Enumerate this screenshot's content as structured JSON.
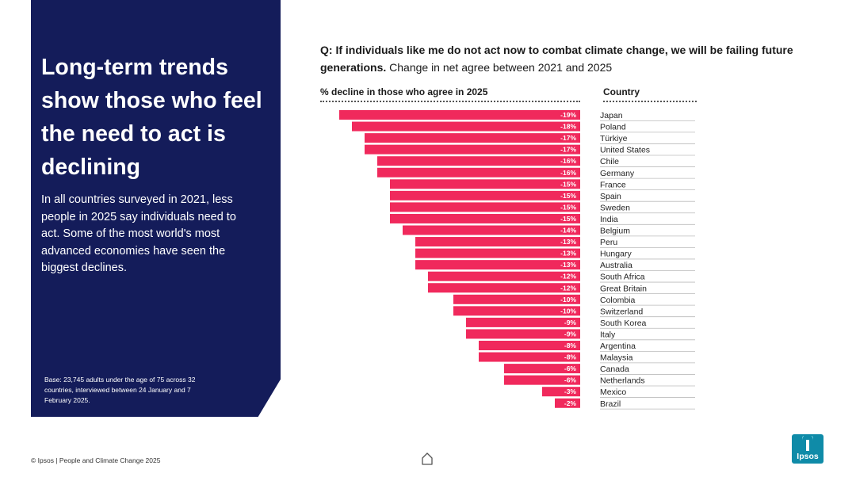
{
  "left_panel": {
    "headline": "Long-term trends show those who feel the need to act is declining",
    "intro": "In all countries surveyed in 2021, less people in 2025 say individuals need to act. Some of the most world's most advanced economies have seen the biggest declines.",
    "base_note": "Base: 23,745 adults under the age of 75 across 32 countries, interviewed between 24 January and 7 February 2025."
  },
  "question": {
    "bold": "Q: If individuals like me do not act now to combat climate change, we will be failing future generations.",
    "normal": "Change in net agree between 2021 and 2025"
  },
  "footer": {
    "text": "© Ipsos | People and Climate Change 2025",
    "logo_text": "Ipsos"
  },
  "colors": {
    "panel": "#141c5a",
    "bar": "#f0295c",
    "logo": "#0f8ba8"
  },
  "icons": {
    "home": "home-icon"
  },
  "chart_data": {
    "type": "bar",
    "orientation": "horizontal",
    "xlabel": "% decline in those who agree in 2025",
    "category_header": "Country",
    "categories": [
      "Japan",
      "Poland",
      "Türkiye",
      "United States",
      "Chile",
      "Germany",
      "France",
      "Spain",
      "Sweden",
      "India",
      "Belgium",
      "Peru",
      "Hungary",
      "Australia",
      "South Africa",
      "Great Britain",
      "Colombia",
      "Switzerland",
      "South Korea",
      "Italy",
      "Argentina",
      "Malaysia",
      "Canada",
      "Netherlands",
      "Mexico",
      "Brazil"
    ],
    "values": [
      -19,
      -18,
      -17,
      -17,
      -16,
      -16,
      -15,
      -15,
      -15,
      -15,
      -14,
      -13,
      -13,
      -13,
      -12,
      -12,
      -10,
      -10,
      -9,
      -9,
      -8,
      -8,
      -6,
      -6,
      -3,
      -2
    ],
    "labels": [
      "-19%",
      "-18%",
      "-17%",
      "-17%",
      "-16%",
      "-16%",
      "-15%",
      "-15%",
      "-15%",
      "-15%",
      "-14%",
      "-13%",
      "-13%",
      "-13%",
      "-12%",
      "-12%",
      "-10%",
      "-10%",
      "-9%",
      "-9%",
      "-8%",
      "-8%",
      "-6%",
      "-6%",
      "-3%",
      "-2%"
    ],
    "xlim": [
      -20,
      0
    ]
  }
}
